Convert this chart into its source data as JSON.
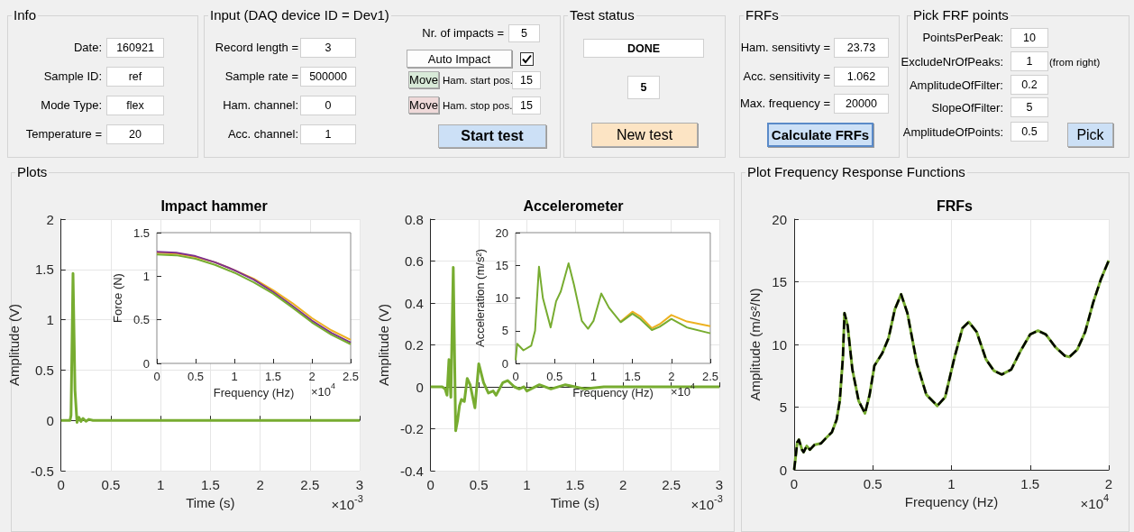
{
  "chart_data": [
    {
      "type": "other",
      "title": "Info",
      "annotations": [
        "Date:",
        "160921",
        "Sample ID:",
        "ref",
        "Mode Type:",
        "flex",
        "Temperature =",
        "20"
      ]
    },
    {
      "type": "other",
      "title": "Input (DAQ device ID = Dev1)",
      "annotations": [
        "Record length =",
        "3",
        "Sample rate =",
        "500000",
        "Ham. channel:",
        "0",
        "Acc. channel:",
        "1",
        "Nr. of impacts =",
        "5",
        "Auto Impact",
        "Move",
        "Ham. start pos.",
        "15",
        "Move",
        "Ham. stop pos.",
        "15",
        "Start test"
      ]
    },
    {
      "type": "other",
      "title": "Test status",
      "annotations": [
        "DONE",
        "5",
        "New test"
      ]
    },
    {
      "type": "other",
      "title": "FRFs",
      "annotations": [
        "Ham. sensitivty =",
        "23.73",
        "Acc. sensitivity =",
        "1.062",
        "Max. frequency =",
        "20000",
        "Calculate FRFs"
      ]
    },
    {
      "type": "other",
      "title": "Pick FRF points",
      "annotations": [
        "PointsPerPeak:",
        "10",
        "ExcludeNrOfPeaks:",
        "1",
        "(from right)",
        "AmplitudeOfFilter:",
        "0.2",
        "SlopeOfFilter:",
        "5",
        "AmplitudeOfPoints:",
        "0.5",
        "Pick"
      ]
    },
    {
      "type": "other",
      "title": "Plots"
    },
    {
      "type": "line",
      "title": "Impact hammer",
      "xlabel": "Time (s)",
      "ylabel": "Amplitude (V)",
      "annotations": [
        "×10$^{-3}$"
      ],
      "xlim": [
        0,
        3
      ],
      "xticks": [
        0,
        0.5,
        1,
        1.5,
        2,
        2.5,
        3
      ],
      "ylim": [
        -0.5,
        2
      ],
      "yticks": [
        -0.5,
        0,
        0.5,
        1,
        1.5,
        2
      ],
      "grid": true,
      "x": [
        0,
        0.09,
        0.1,
        0.12,
        0.14,
        0.16,
        0.18,
        0.2,
        0.22,
        0.25,
        0.28,
        0.32,
        0.4,
        0.5,
        3
      ],
      "series": [
        {
          "color": "#77ac30",
          "values": [
            0,
            0,
            0.05,
            1.46,
            0.3,
            -0.02,
            0.03,
            -0.01,
            0.02,
            -0.01,
            0.01,
            0,
            0,
            0,
            0
          ]
        }
      ]
    },
    {
      "type": "line",
      "xlabel": "Frequency (Hz)",
      "ylabel": "Force (N)",
      "annotations": [
        "×10$^{4}$"
      ],
      "xlim": [
        0,
        2.5
      ],
      "xticks": [
        0,
        0.5,
        1,
        1.5,
        2,
        2.5
      ],
      "ylim": [
        0,
        1.5
      ],
      "yticks": [
        0,
        0.5,
        1,
        1.5
      ],
      "grid": false,
      "x": [
        0,
        0.25,
        0.5,
        0.75,
        1,
        1.25,
        1.5,
        1.75,
        2,
        2.25,
        2.5
      ],
      "series": [
        {
          "color": "#edb120",
          "values": [
            1.27,
            1.26,
            1.22,
            1.16,
            1.07,
            0.97,
            0.84,
            0.69,
            0.52,
            0.38,
            0.27
          ]
        },
        {
          "color": "#7e2f8e",
          "values": [
            1.28,
            1.27,
            1.23,
            1.16,
            1.07,
            0.96,
            0.82,
            0.66,
            0.49,
            0.35,
            0.24
          ]
        },
        {
          "color": "#77ac30",
          "values": [
            1.25,
            1.24,
            1.2,
            1.13,
            1.04,
            0.93,
            0.8,
            0.64,
            0.47,
            0.33,
            0.22
          ]
        }
      ]
    },
    {
      "type": "line",
      "title": "Accelerometer",
      "xlabel": "Time (s)",
      "ylabel": "Amplitude (V)",
      "annotations": [
        "×10$^{-3}$"
      ],
      "xlim": [
        0,
        3
      ],
      "xticks": [
        0,
        0.5,
        1,
        1.5,
        2,
        2.5,
        3
      ],
      "ylim": [
        -0.4,
        0.8
      ],
      "yticks": [
        -0.4,
        -0.2,
        0,
        0.2,
        0.4,
        0.6,
        0.8
      ],
      "grid": true,
      "x": [
        0,
        0.12,
        0.15,
        0.17,
        0.19,
        0.21,
        0.235,
        0.26,
        0.28,
        0.3,
        0.32,
        0.35,
        0.38,
        0.41,
        0.46,
        0.5,
        0.55,
        0.6,
        0.65,
        0.68,
        0.75,
        0.8,
        0.87,
        0.92,
        0.97,
        1,
        1.13,
        1.25,
        1.4,
        1.6,
        1.8,
        2.2,
        3
      ],
      "series": [
        {
          "color": "#77ac30",
          "values": [
            0,
            0,
            -0.01,
            -0.04,
            0.13,
            -0.05,
            0.57,
            -0.21,
            -0.16,
            -0.09,
            -0.06,
            -0.07,
            0.04,
            0.01,
            -0.1,
            0.11,
            0.02,
            -0.03,
            -0.02,
            -0.04,
            0.02,
            0.03,
            0,
            -0.01,
            0,
            -0.02,
            0.01,
            -0.01,
            0.01,
            -0.01,
            0,
            0,
            0
          ]
        }
      ]
    },
    {
      "type": "line",
      "xlabel": "Frequency (Hz)",
      "ylabel": "Acceleration (m/s²)",
      "annotations": [
        "×10$^{4}$"
      ],
      "xlim": [
        0,
        2.5
      ],
      "xticks": [
        0,
        0.5,
        1,
        1.5,
        2,
        2.5
      ],
      "ylim": [
        0,
        20
      ],
      "yticks": [
        0,
        5,
        10,
        15,
        20
      ],
      "grid": false,
      "series": [
        {
          "color": "#edb120",
          "x": [
            1.35,
            1.5,
            1.6,
            1.75,
            1.85,
            2,
            2.2,
            2.5
          ],
          "values": [
            6.4,
            7.9,
            7.2,
            5.4,
            6,
            7.4,
            6.4,
            5.7
          ]
        },
        {
          "color": "#77ac30",
          "x": [
            0,
            0.02,
            0.1,
            0.2,
            0.25,
            0.3,
            0.35,
            0.45,
            0.52,
            0.58,
            0.68,
            0.75,
            0.85,
            0.93,
            1,
            1.1,
            1.2,
            1.35,
            1.5,
            1.6,
            1.75,
            1.85,
            2,
            2.2,
            2.5
          ],
          "values": [
            0.5,
            3,
            2,
            2.7,
            5,
            14.8,
            10,
            5.5,
            9.5,
            11,
            15.3,
            12,
            6.5,
            5.3,
            6.5,
            10.7,
            8.5,
            6.3,
            7.6,
            6.8,
            5.1,
            5.6,
            6.8,
            5.5,
            4.6
          ]
        }
      ]
    },
    {
      "type": "other",
      "title": "Plot Frequency Response Functions"
    },
    {
      "type": "line",
      "title": "FRFs",
      "xlabel": "Frequency (Hz)",
      "ylabel": "Amplitude (m/s²/N)",
      "annotations": [
        "×10$^{4}$"
      ],
      "xlim": [
        0,
        2
      ],
      "xticks": [
        0,
        0.5,
        1,
        1.5,
        2
      ],
      "ylim": [
        0,
        20
      ],
      "yticks": [
        0,
        5,
        10,
        15,
        20
      ],
      "grid": true,
      "x": [
        0,
        0.02,
        0.03,
        0.05,
        0.06,
        0.08,
        0.1,
        0.13,
        0.17,
        0.2,
        0.24,
        0.27,
        0.29,
        0.31,
        0.32,
        0.34,
        0.37,
        0.41,
        0.45,
        0.48,
        0.51,
        0.56,
        0.6,
        0.64,
        0.68,
        0.72,
        0.78,
        0.84,
        0.91,
        0.96,
        1.02,
        1.07,
        1.11,
        1.16,
        1.22,
        1.27,
        1.32,
        1.38,
        1.44,
        1.5,
        1.55,
        1.6,
        1.66,
        1.72,
        1.75,
        1.8,
        1.85,
        1.9,
        1.95,
        2
      ],
      "series": [
        {
          "color": "#77ac30",
          "line_style": "solid",
          "values": [
            0,
            2.2,
            2.4,
            1.6,
            1.4,
            1.9,
            1.6,
            2,
            2.1,
            2.5,
            3,
            4,
            5.5,
            9,
            12.5,
            11.5,
            8,
            5.5,
            4.5,
            6,
            8.3,
            9.3,
            10.5,
            12.8,
            14,
            12.5,
            8.5,
            6,
            5.1,
            5.8,
            9,
            11.3,
            11.8,
            11,
            8.8,
            7.9,
            7.6,
            8,
            9.5,
            10.8,
            11.1,
            10.8,
            9.8,
            9.1,
            9,
            9.6,
            11,
            13.3,
            15.2,
            16.7
          ]
        },
        {
          "color": "#000000",
          "line_style": "dashed",
          "values": [
            0,
            2.2,
            2.4,
            1.6,
            1.4,
            1.9,
            1.6,
            2,
            2.1,
            2.5,
            3,
            4,
            5.5,
            9,
            12.5,
            11.5,
            8,
            5.5,
            4.5,
            6,
            8.3,
            9.3,
            10.5,
            12.8,
            14,
            12.5,
            8.5,
            6,
            5.1,
            5.8,
            9,
            11.3,
            11.8,
            11,
            8.8,
            7.9,
            7.6,
            8,
            9.5,
            10.8,
            11.1,
            10.8,
            9.8,
            9.1,
            9,
            9.6,
            11,
            13.3,
            15.2,
            16.7
          ]
        }
      ]
    }
  ]
}
